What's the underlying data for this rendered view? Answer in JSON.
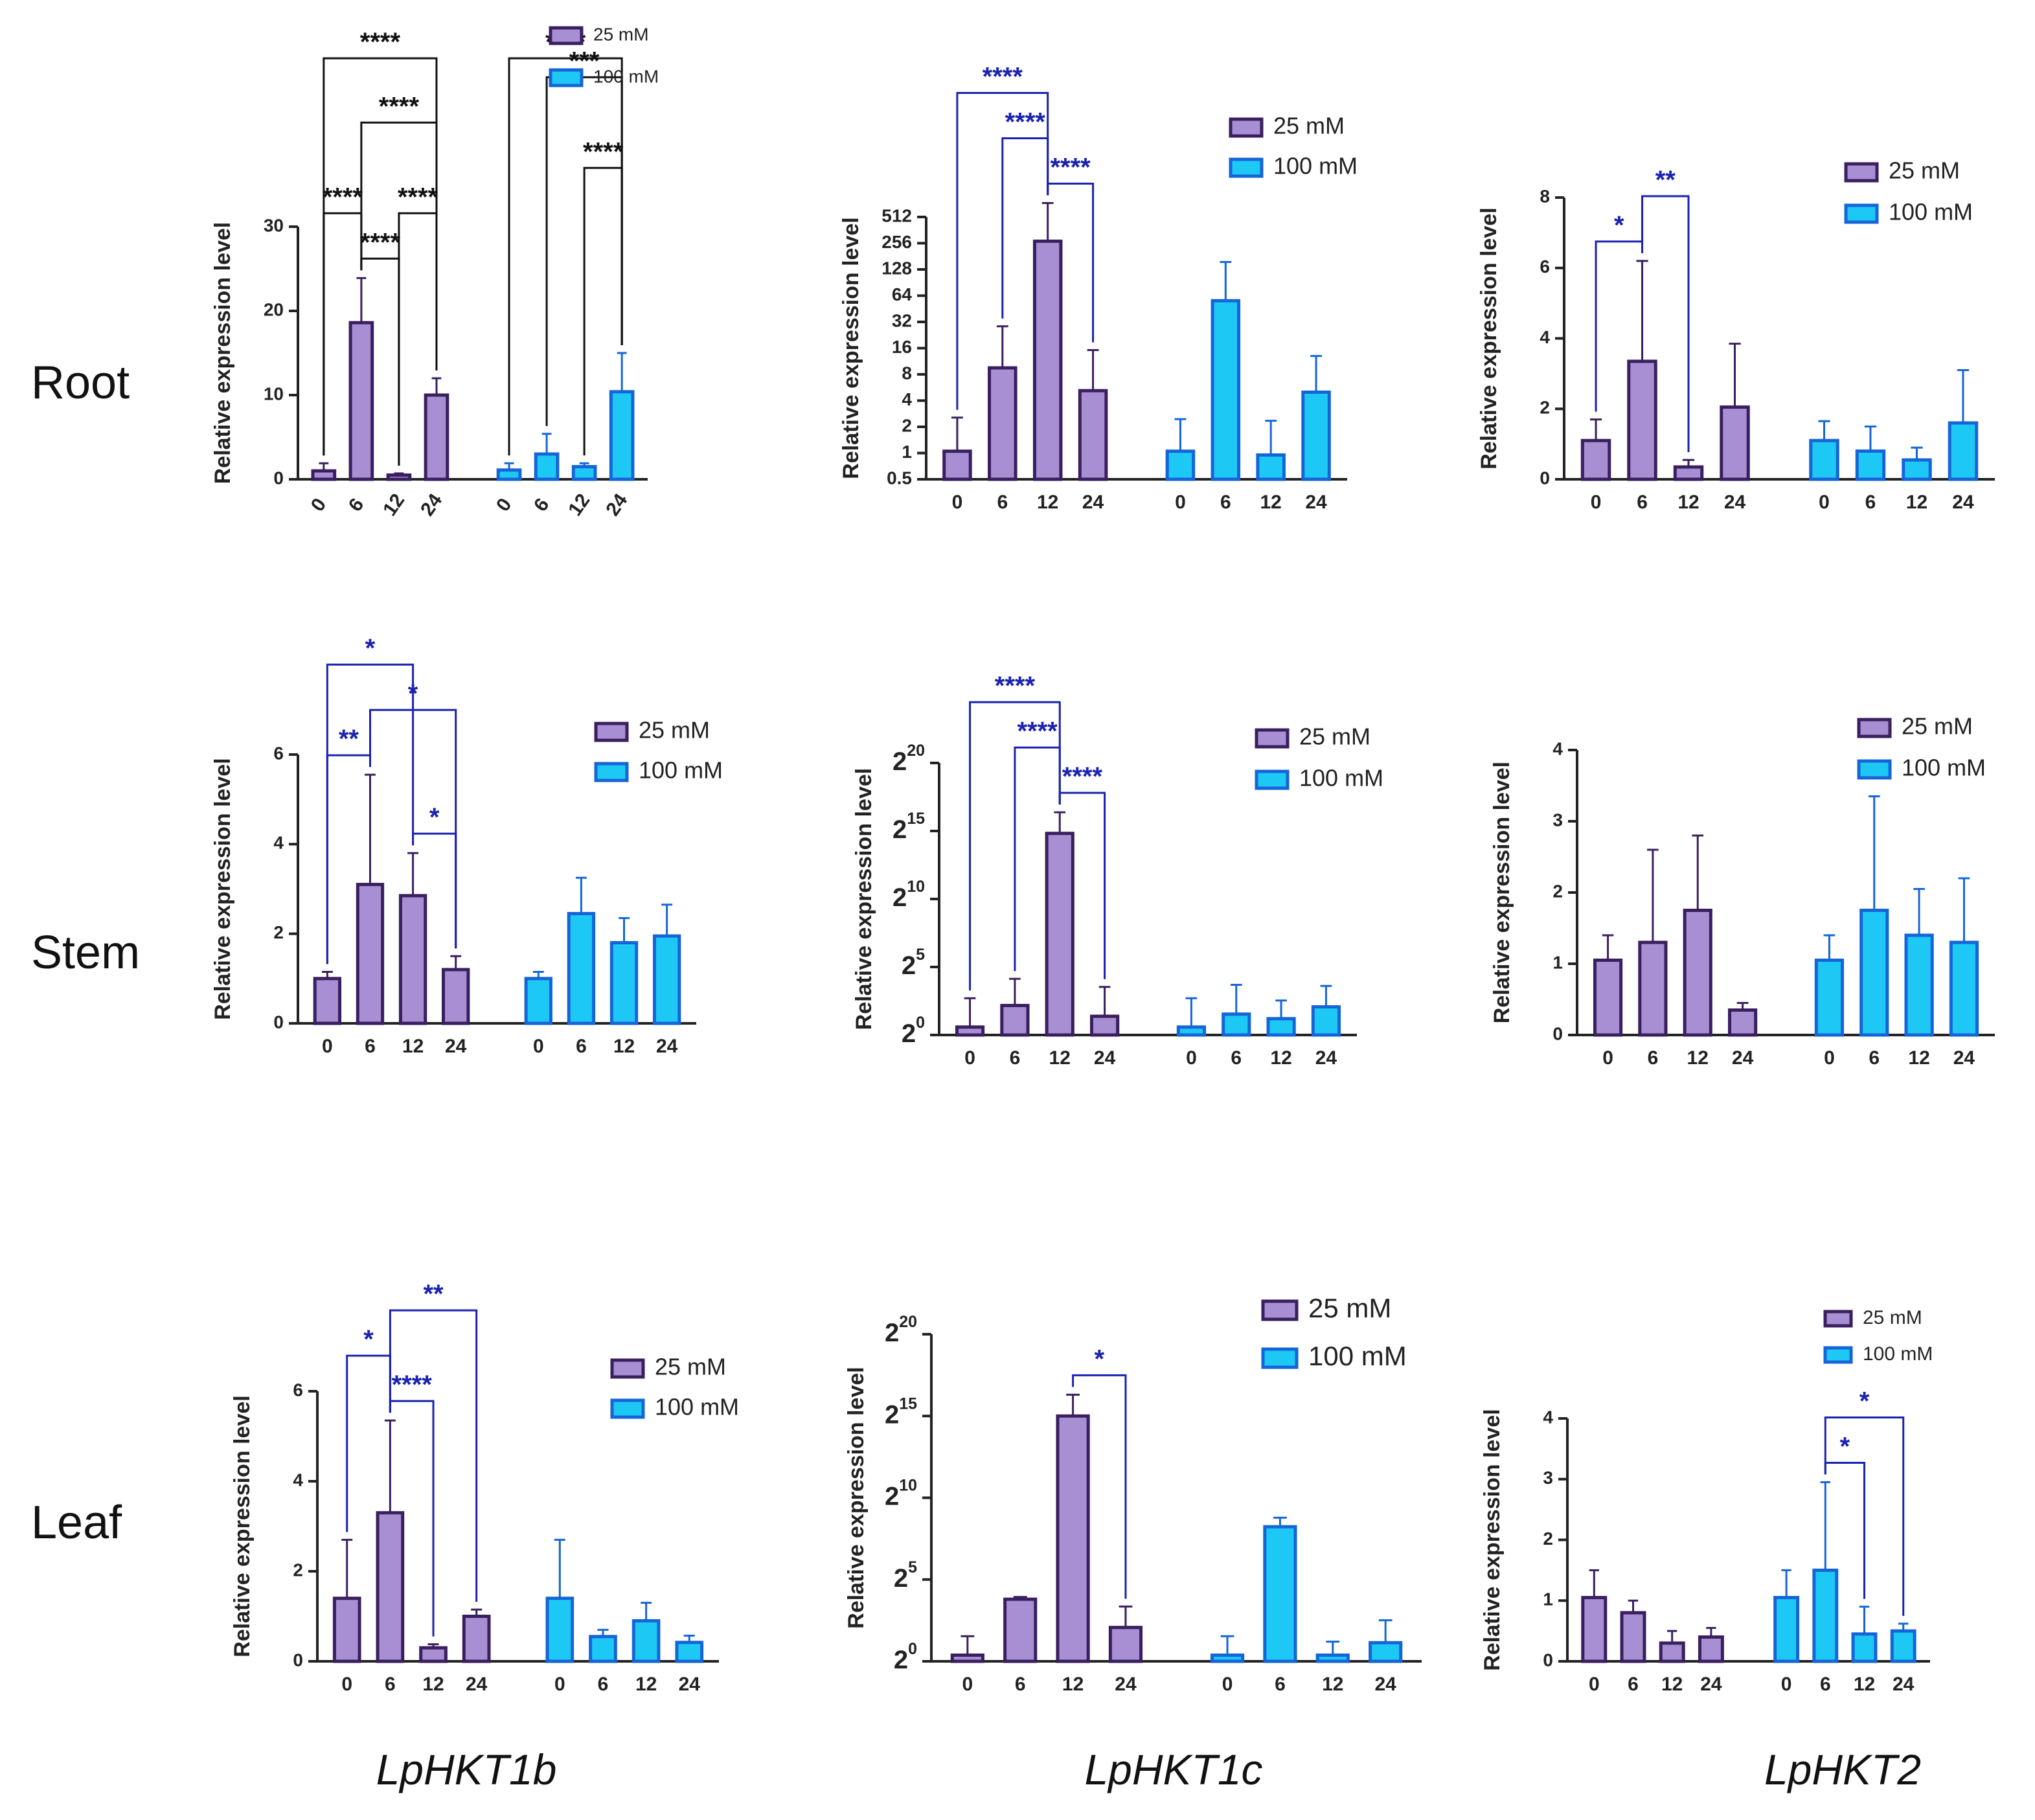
{
  "figure": {
    "row_labels": [
      "Root",
      "Stem",
      "Leaf"
    ],
    "gene_labels": [
      "LpHKT1b",
      "LpHKT1c",
      "LpHKT2"
    ],
    "colors": {
      "bar_25_fill": "#a88fd4",
      "bar_25_edge": "#3a1f5e",
      "bar_100_fill": "#1ec8f5",
      "bar_100_edge": "#1565d8",
      "sig_black": "#111111",
      "sig_blue": "#1a22b0",
      "axis": "#222222"
    }
  },
  "chart_data": [
    {
      "id": "root-lphkt1b",
      "row": "Root",
      "gene": "LpHKT1b",
      "type": "bar",
      "scale": "linear",
      "ylim": [
        0,
        30
      ],
      "yticks": [
        0,
        10,
        20,
        30
      ],
      "ylabel": "Relative expression level",
      "legend": [
        "25 mM",
        "100 mM"
      ],
      "legend_position": "top-right",
      "groups": [
        {
          "name": "25 mM",
          "categories": [
            "0",
            "6",
            "12",
            "24"
          ],
          "values": [
            1.0,
            18.6,
            0.5,
            10.0
          ],
          "errors": [
            0.9,
            5.3,
            0.2,
            2.0
          ]
        },
        {
          "name": "100 mM",
          "categories": [
            "0",
            "6",
            "12",
            "24"
          ],
          "values": [
            1.1,
            3.0,
            1.5,
            10.4
          ],
          "errors": [
            0.8,
            2.4,
            0.4,
            4.6
          ]
        }
      ],
      "significance": [
        {
          "group": 0,
          "from": 0,
          "to": 3,
          "label": "****",
          "color": "black"
        },
        {
          "group": 0,
          "from": 1,
          "to": 3,
          "label": "****",
          "color": "black"
        },
        {
          "group": 0,
          "from": 1,
          "to": 2,
          "label": "****",
          "color": "black"
        },
        {
          "group": 0,
          "from": 0,
          "to": 1,
          "label": "****",
          "color": "black"
        },
        {
          "group": 0,
          "from": 2,
          "to": 3,
          "label": "****",
          "color": "black"
        },
        {
          "group": 1,
          "from": 0,
          "to": 3,
          "label": "****",
          "color": "black"
        },
        {
          "group": 1,
          "from": 1,
          "to": 3,
          "label": "***",
          "color": "black"
        },
        {
          "group": 1,
          "from": 2,
          "to": 3,
          "label": "****",
          "color": "black"
        }
      ]
    },
    {
      "id": "root-lphkt1c",
      "row": "Root",
      "gene": "LpHKT1c",
      "type": "bar",
      "scale": "log2",
      "ylim": [
        0.5,
        512
      ],
      "yticks": [
        0.5,
        1,
        2,
        4,
        8,
        16,
        32,
        64,
        128,
        256,
        512
      ],
      "ytick_labels": [
        "0.5",
        "1",
        "2",
        "4",
        "8",
        "16",
        "32",
        "64",
        "128",
        "256",
        "512"
      ],
      "ylabel": "Relative expression level",
      "legend": [
        "25 mM",
        "100 mM"
      ],
      "legend_position": "top-right",
      "groups": [
        {
          "name": "25 mM",
          "categories": [
            "0",
            "6",
            "12",
            "24"
          ],
          "values": [
            1.05,
            9.5,
            270,
            5.2
          ],
          "errors": [
            1.5,
            19,
            470,
            10
          ]
        },
        {
          "name": "100 mM",
          "categories": [
            "0",
            "6",
            "12",
            "24"
          ],
          "values": [
            1.05,
            56,
            0.95,
            5.0
          ],
          "errors": [
            1.4,
            100,
            1.4,
            8
          ]
        }
      ],
      "significance": [
        {
          "group": 0,
          "from": 0,
          "to": 2,
          "label": "****",
          "color": "blue"
        },
        {
          "group": 0,
          "from": 2,
          "to": 3,
          "label": "****",
          "color": "blue"
        },
        {
          "group": 0,
          "from": 1,
          "to": 2,
          "label": "****",
          "color": "blue"
        }
      ]
    },
    {
      "id": "root-lphkt2",
      "row": "Root",
      "gene": "LpHKT2",
      "type": "bar",
      "scale": "linear",
      "ylim": [
        0,
        8
      ],
      "yticks": [
        0,
        2,
        4,
        6,
        8
      ],
      "ylabel": "Relative expression level",
      "legend": [
        "25 mM",
        "100 mM"
      ],
      "legend_position": "top-right",
      "groups": [
        {
          "name": "25 mM",
          "categories": [
            "0",
            "6",
            "12",
            "24"
          ],
          "values": [
            1.1,
            3.35,
            0.35,
            2.05
          ],
          "errors": [
            0.6,
            2.85,
            0.2,
            1.8
          ]
        },
        {
          "name": "100 mM",
          "categories": [
            "0",
            "6",
            "12",
            "24"
          ],
          "values": [
            1.1,
            0.8,
            0.55,
            1.6
          ],
          "errors": [
            0.55,
            0.7,
            0.35,
            1.5
          ]
        }
      ],
      "significance": [
        {
          "group": 0,
          "from": 0,
          "to": 1,
          "label": "*",
          "color": "blue"
        },
        {
          "group": 0,
          "from": 1,
          "to": 2,
          "label": "**",
          "color": "blue"
        }
      ]
    },
    {
      "id": "stem-lphkt1b",
      "row": "Stem",
      "gene": "LpHKT1b",
      "type": "bar",
      "scale": "linear",
      "ylim": [
        0,
        6
      ],
      "yticks": [
        0,
        2,
        4,
        6
      ],
      "ylabel": "Relative expression level",
      "legend": [
        "25 mM",
        "100 mM"
      ],
      "legend_position": "top-right",
      "groups": [
        {
          "name": "25 mM",
          "categories": [
            "0",
            "6",
            "12",
            "24"
          ],
          "values": [
            1.0,
            3.1,
            2.85,
            1.2
          ],
          "errors": [
            0.15,
            2.45,
            0.95,
            0.3
          ]
        },
        {
          "name": "100 mM",
          "categories": [
            "0",
            "6",
            "12",
            "24"
          ],
          "values": [
            1.0,
            2.45,
            1.8,
            1.95
          ],
          "errors": [
            0.15,
            0.8,
            0.55,
            0.7
          ]
        }
      ],
      "significance": [
        {
          "group": 0,
          "from": 1,
          "to": 3,
          "label": "*",
          "color": "blue"
        },
        {
          "group": 0,
          "from": 0,
          "to": 2,
          "label": "*",
          "color": "blue"
        },
        {
          "group": 0,
          "from": 0,
          "to": 1,
          "label": "**",
          "color": "blue"
        },
        {
          "group": 0,
          "from": 2,
          "to": 3,
          "label": "*",
          "color": "blue"
        }
      ]
    },
    {
      "id": "stem-lphkt1c",
      "row": "Stem",
      "gene": "LpHKT1c",
      "type": "bar",
      "scale": "log2",
      "ylim": [
        1,
        1048576
      ],
      "yticks": [
        1,
        32,
        1024,
        32768,
        1048576
      ],
      "ytick_labels": [
        "2^0",
        "2^5",
        "2^10",
        "2^15",
        "2^20"
      ],
      "ylabel": "Relative expression level",
      "legend": [
        "25 mM",
        "100 mM"
      ],
      "legend_position": "top-right",
      "groups": [
        {
          "name": "25 mM",
          "categories": [
            "0",
            "6",
            "12",
            "24"
          ],
          "values": [
            1.5,
            4.5,
            29000,
            2.6
          ],
          "errors": [
            5,
            13,
            56000,
            9
          ]
        },
        {
          "name": "100 mM",
          "categories": [
            "0",
            "6",
            "12",
            "24"
          ],
          "values": [
            1.5,
            2.9,
            2.3,
            4.2
          ],
          "errors": [
            5,
            10,
            3.5,
            8
          ]
        }
      ],
      "significance": [
        {
          "group": 0,
          "from": 0,
          "to": 2,
          "label": "****",
          "color": "blue"
        },
        {
          "group": 0,
          "from": 2,
          "to": 3,
          "label": "****",
          "color": "blue"
        },
        {
          "group": 0,
          "from": 1,
          "to": 2,
          "label": "****",
          "color": "blue"
        }
      ]
    },
    {
      "id": "stem-lphkt2",
      "row": "Stem",
      "gene": "LpHKT2",
      "type": "bar",
      "scale": "linear",
      "ylim": [
        0,
        4
      ],
      "yticks": [
        0,
        1,
        2,
        3,
        4
      ],
      "ylabel": "Relative expression level",
      "legend": [
        "25 mM",
        "100 mM"
      ],
      "legend_position": "top-right",
      "groups": [
        {
          "name": "25 mM",
          "categories": [
            "0",
            "6",
            "12",
            "24"
          ],
          "values": [
            1.05,
            1.3,
            1.75,
            0.35
          ],
          "errors": [
            0.35,
            1.3,
            1.05,
            0.1
          ]
        },
        {
          "name": "100 mM",
          "categories": [
            "0",
            "6",
            "12",
            "24"
          ],
          "values": [
            1.05,
            1.75,
            1.4,
            1.3
          ],
          "errors": [
            0.35,
            1.6,
            0.65,
            0.9
          ]
        }
      ],
      "significance": []
    },
    {
      "id": "leaf-lphkt1b",
      "row": "Leaf",
      "gene": "LpHKT1b",
      "type": "bar",
      "scale": "linear",
      "ylim": [
        0,
        6
      ],
      "yticks": [
        0,
        2,
        4,
        6
      ],
      "ylabel": "Relative expression level",
      "legend": [
        "25 mM",
        "100 mM"
      ],
      "legend_position": "top-right",
      "groups": [
        {
          "name": "25 mM",
          "categories": [
            "0",
            "6",
            "12",
            "24"
          ],
          "values": [
            1.4,
            3.3,
            0.3,
            1.0
          ],
          "errors": [
            1.3,
            2.05,
            0.08,
            0.15
          ]
        },
        {
          "name": "100 mM",
          "categories": [
            "0",
            "6",
            "12",
            "24"
          ],
          "values": [
            1.4,
            0.55,
            0.9,
            0.42
          ],
          "errors": [
            1.3,
            0.15,
            0.4,
            0.15
          ]
        }
      ],
      "significance": [
        {
          "group": 0,
          "from": 1,
          "to": 2,
          "label": "****",
          "color": "blue"
        },
        {
          "group": 0,
          "from": 0,
          "to": 1,
          "label": "*",
          "color": "blue"
        },
        {
          "group": 0,
          "from": 1,
          "to": 3,
          "label": "**",
          "color": "blue"
        }
      ]
    },
    {
      "id": "leaf-lphkt1c",
      "row": "Leaf",
      "gene": "LpHKT1c",
      "type": "bar",
      "scale": "log2",
      "ylim": [
        1,
        1048576
      ],
      "yticks": [
        1,
        32,
        1024,
        32768,
        1048576
      ],
      "ytick_labels": [
        "2^0",
        "2^5",
        "2^10",
        "2^15",
        "2^20"
      ],
      "ylabel": "Relative expression level",
      "legend": [
        "25 mM",
        "100 mM"
      ],
      "legend_position": "top-right",
      "groups": [
        {
          "name": "25 mM",
          "categories": [
            "0",
            "6",
            "12",
            "24"
          ],
          "values": [
            1.3,
            13.9,
            32768,
            4.2
          ],
          "errors": [
            1.6,
            1.4,
            48000,
            6
          ]
        },
        {
          "name": "100 mM",
          "categories": [
            "0",
            "6",
            "12",
            "24"
          ],
          "values": [
            1.3,
            300,
            1.3,
            2.2
          ],
          "errors": [
            1.6,
            140,
            1.0,
            3.5
          ]
        }
      ],
      "significance": [
        {
          "group": 0,
          "from": 2,
          "to": 3,
          "label": "*",
          "color": "blue"
        }
      ]
    },
    {
      "id": "leaf-lphkt2",
      "row": "Leaf",
      "gene": "LpHKT2",
      "type": "bar",
      "scale": "linear",
      "ylim": [
        0,
        4
      ],
      "yticks": [
        0,
        1,
        2,
        3,
        4
      ],
      "ylabel": "Relative expression level",
      "legend": [
        "25 mM",
        "100 mM"
      ],
      "legend_position": "top-right",
      "groups": [
        {
          "name": "25 mM",
          "categories": [
            "0",
            "6",
            "12",
            "24"
          ],
          "values": [
            1.05,
            0.8,
            0.3,
            0.4
          ],
          "errors": [
            0.45,
            0.2,
            0.2,
            0.15
          ]
        },
        {
          "name": "100 mM",
          "categories": [
            "0",
            "6",
            "12",
            "24"
          ],
          "values": [
            1.05,
            1.5,
            0.45,
            0.5
          ],
          "errors": [
            0.45,
            1.45,
            0.45,
            0.12
          ]
        }
      ],
      "significance": [
        {
          "group": 1,
          "from": 1,
          "to": 2,
          "label": "*",
          "color": "blue"
        },
        {
          "group": 1,
          "from": 1,
          "to": 3,
          "label": "*",
          "color": "blue"
        }
      ]
    }
  ]
}
